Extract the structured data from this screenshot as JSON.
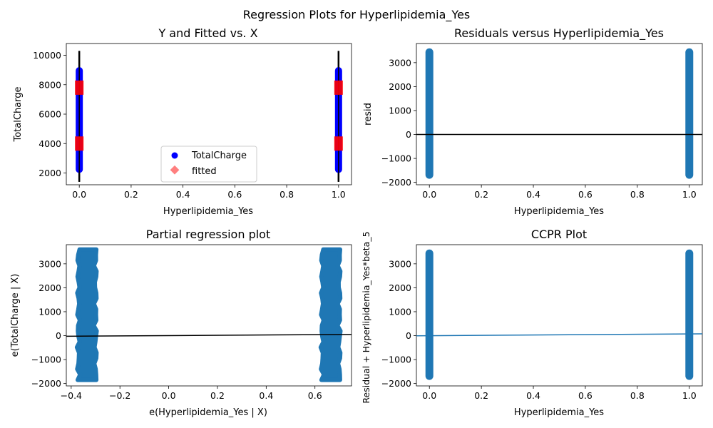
{
  "figure": {
    "suptitle": "Regression Plots for Hyperlipidemia_Yes"
  },
  "colors": {
    "scatter": "#1f77b4",
    "observed": "#0000ff",
    "fitted": "#ff0000",
    "line": "#000000",
    "ccpr_line": "#1f77b4"
  },
  "chart_data": [
    {
      "type": "scatter",
      "title": "Y and Fitted vs. X",
      "xlabel": "Hyperlipidemia_Yes",
      "ylabel": "TotalCharge",
      "xlim": [
        -0.05,
        1.05
      ],
      "ylim": [
        1200,
        10800
      ],
      "xticks": [
        "0.0",
        "0.2",
        "0.4",
        "0.6",
        "0.8",
        "1.0"
      ],
      "yticks": [
        "2000",
        "4000",
        "6000",
        "8000",
        "10000"
      ],
      "legend": {
        "placement": "lower-center",
        "entries": [
          "TotalCharge",
          "fitted"
        ]
      },
      "series": [
        {
          "name": "TotalCharge",
          "marker": "circle",
          "x": [
            0,
            1
          ],
          "y_range": [
            2000,
            9200
          ]
        },
        {
          "name": "fitted",
          "marker": "diamond",
          "x": [
            0,
            1
          ],
          "y_values": [
            4000,
            7800
          ]
        }
      ],
      "ci_bars": [
        {
          "x": 0,
          "y_range": [
            1400,
            10300
          ]
        },
        {
          "x": 1,
          "y_range": [
            1400,
            10300
          ]
        }
      ]
    },
    {
      "type": "scatter",
      "title": "Residuals versus Hyperlipidemia_Yes",
      "xlabel": "Hyperlipidemia_Yes",
      "ylabel": "resid",
      "xlim": [
        -0.05,
        1.05
      ],
      "ylim": [
        -2100,
        3800
      ],
      "xticks": [
        "0.0",
        "0.2",
        "0.4",
        "0.6",
        "0.8",
        "1.0"
      ],
      "yticks": [
        "−2000",
        "−1000",
        "0",
        "1000",
        "2000",
        "3000"
      ],
      "series": [
        {
          "x": [
            0,
            1
          ],
          "y_range": [
            -1850,
            3600
          ]
        }
      ],
      "hline": 0
    },
    {
      "type": "scatter",
      "title": "Partial regression plot",
      "xlabel": "e(Hyperlipidemia_Yes | X)",
      "ylabel": "e(TotalCharge | X)",
      "xlim": [
        -0.42,
        0.75
      ],
      "ylim": [
        -2100,
        3800
      ],
      "xticks": [
        "−0.4",
        "−0.2",
        "0.0",
        "0.2",
        "0.4",
        "0.6"
      ],
      "yticks": [
        "−2000",
        "−1000",
        "0",
        "1000",
        "2000",
        "3000"
      ],
      "clusters": [
        {
          "x_range": [
            -0.37,
            -0.3
          ],
          "y_range": [
            -1850,
            3600
          ]
        },
        {
          "x_range": [
            0.63,
            0.7
          ],
          "y_range": [
            -1850,
            3600
          ]
        }
      ],
      "fit_line": {
        "x": [
          -0.42,
          0.75
        ],
        "y": [
          -25,
          50
        ]
      }
    },
    {
      "type": "scatter",
      "title": "CCPR Plot",
      "xlabel": "Hyperlipidemia_Yes",
      "ylabel": "Residual + Hyperlipidemia_Yes*beta_5",
      "xlim": [
        -0.05,
        1.05
      ],
      "ylim": [
        -2100,
        3800
      ],
      "xticks": [
        "0.0",
        "0.2",
        "0.4",
        "0.6",
        "0.8",
        "1.0"
      ],
      "yticks": [
        "−2000",
        "−1000",
        "0",
        "1000",
        "2000",
        "3000"
      ],
      "series": [
        {
          "x": [
            0,
            1
          ],
          "y_range": [
            -1850,
            3600
          ]
        }
      ],
      "fit_line": {
        "x": [
          -0.05,
          1.05
        ],
        "y": [
          -5,
          75
        ]
      }
    }
  ]
}
